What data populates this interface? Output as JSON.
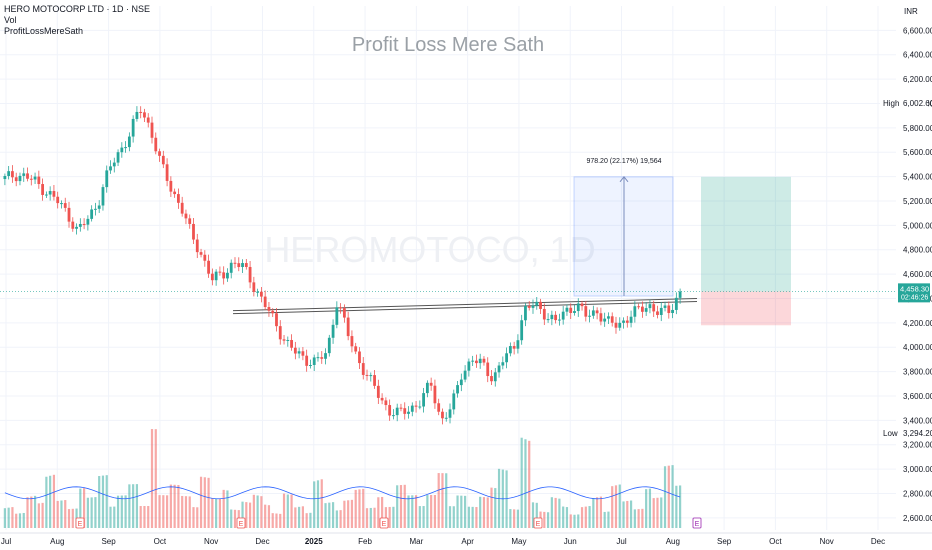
{
  "header": {
    "symbol_line": "HERO MOTOCORP LTD · 1D · NSE",
    "indicator1": "Vol",
    "indicator2": "ProfitLossMereSath"
  },
  "watermark": {
    "title": "Profit Loss Mere Sath",
    "symbol": "HEROMOTOCO, 1D"
  },
  "currency": "INR",
  "chart_data": {
    "type": "candlestick",
    "ylim": [
      2500,
      6800
    ],
    "yticks": [
      2600,
      2800,
      3000,
      3200,
      3400,
      3600,
      3800,
      4000,
      4200,
      4400,
      4600,
      4800,
      5000,
      5200,
      5400,
      5600,
      5800,
      6000,
      6200,
      6400,
      6600
    ],
    "ytick_labels": [
      "2,600.00",
      "2,800.00",
      "3,000.00",
      "3,200.00",
      "3,400.00",
      "3,600.00",
      "3,800.00",
      "4,000.00",
      "4,200.00",
      "4,400.00",
      "4,600.00",
      "4,800.00",
      "5,000.00",
      "5,200.00",
      "5,400.00",
      "5,600.00",
      "5,800.00",
      "6,000.00",
      "6,200.00",
      "6,400.00",
      "6,600.00"
    ],
    "x_months": [
      "Jul",
      "Aug",
      "Sep",
      "Oct",
      "Nov",
      "Dec",
      "2025",
      "Feb",
      "Mar",
      "Apr",
      "May",
      "Jun",
      "Jul",
      "Aug",
      "Sep",
      "Oct",
      "Nov",
      "Dec"
    ],
    "high": {
      "label": "High",
      "value": "6,002.60"
    },
    "low": {
      "label": "Low",
      "value": "3,294.20"
    },
    "last_price": {
      "value": "4,458.30",
      "countdown": "02:46:26"
    },
    "measure": {
      "text": "978.20 (22.17%) 19,564",
      "from": 4420,
      "to": 5398
    },
    "trendline": {
      "start_price": 4300,
      "end_price": 4400
    },
    "position": {
      "entry": 4458,
      "target": 5398,
      "stop": 4180
    },
    "price_path": [
      5380,
      5420,
      5400,
      5350,
      5280,
      5200,
      5100,
      4950,
      5050,
      5200,
      5450,
      5600,
      5750,
      5960,
      5800,
      5500,
      5300,
      5150,
      4900,
      4750,
      4550,
      4600,
      4700,
      4650,
      4500,
      4350,
      4200,
      4050,
      3950,
      3900,
      3880,
      3950,
      4400,
      4100,
      3900,
      3750,
      3600,
      3480,
      3450,
      3500,
      3550,
      3700,
      3400,
      3500,
      3800,
      3900,
      3850,
      3750,
      3900,
      4000,
      4300,
      4350,
      4280,
      4200,
      4300,
      4350,
      4250,
      4300,
      4200,
      4180,
      4250,
      4300,
      4350,
      4280,
      4300,
      4458
    ],
    "volume_path": [
      3,
      2,
      4,
      3,
      6,
      3,
      2,
      4,
      3,
      5,
      2,
      3,
      4,
      2,
      9,
      3,
      4,
      3,
      2,
      5,
      3,
      4,
      2,
      3,
      4,
      3,
      2,
      5,
      3,
      2,
      6,
      3,
      2,
      3,
      4,
      2,
      3,
      2,
      4,
      3,
      2,
      3,
      5,
      2,
      3,
      2,
      3,
      4,
      6,
      2,
      10,
      3,
      2,
      4,
      3,
      2,
      3,
      4,
      2,
      5,
      3,
      2,
      4,
      3,
      6,
      4
    ],
    "volume_ma": 3.2,
    "earnings_marker": "E"
  }
}
